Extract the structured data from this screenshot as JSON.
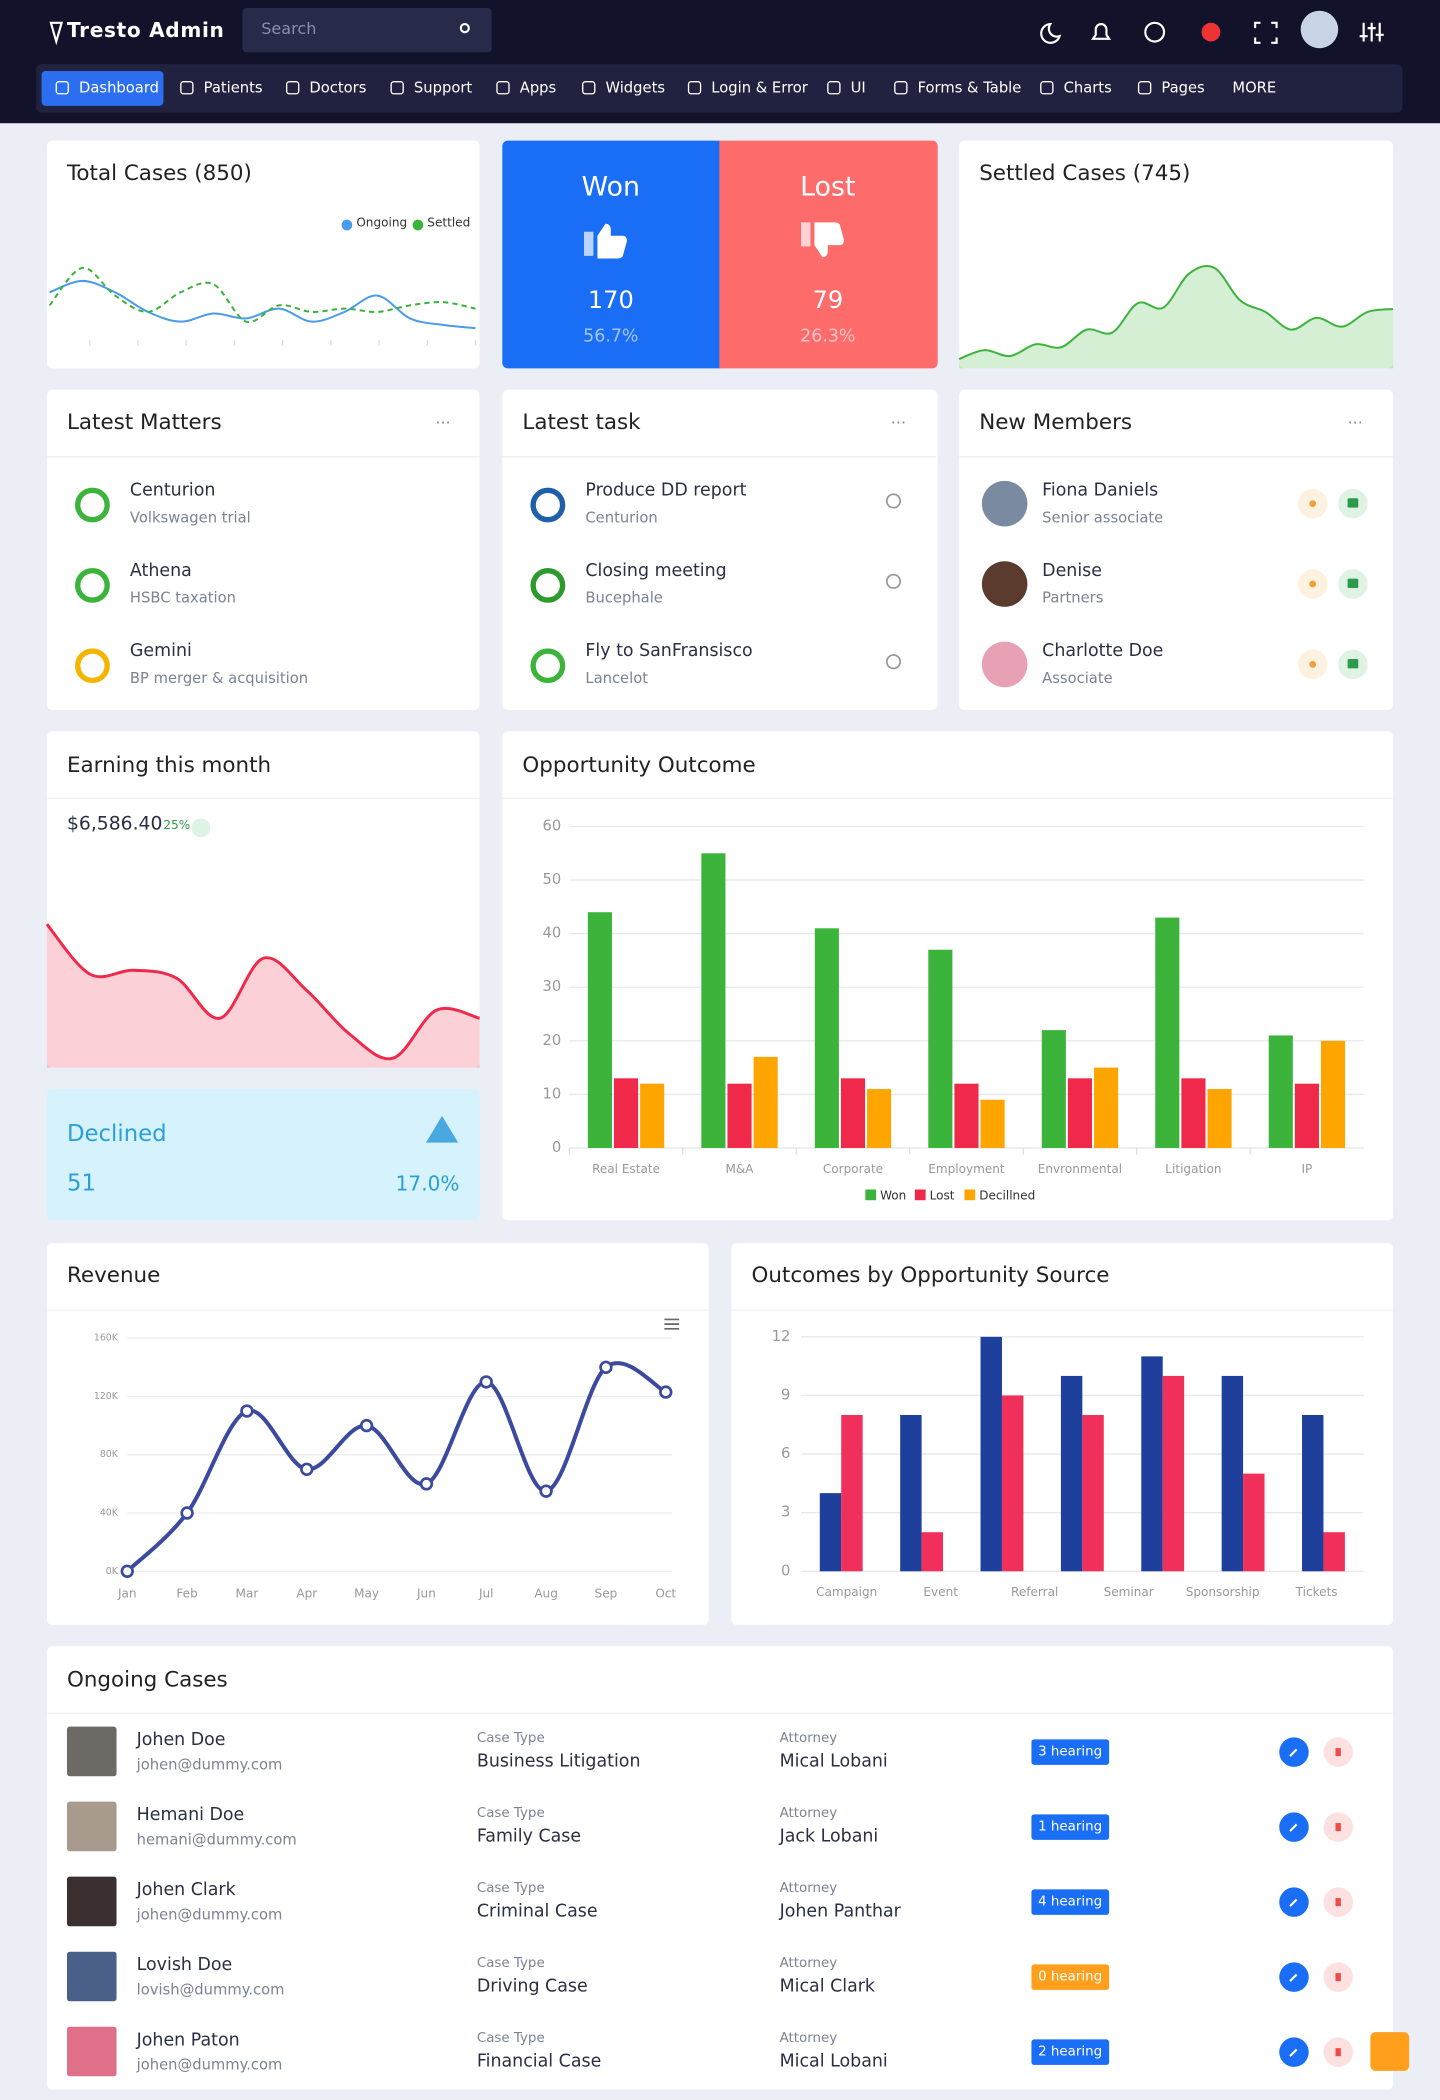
{
  "header": {
    "brand": "Tresto Admin",
    "search_placeholder": "Search"
  },
  "nav": [
    "Dashboard",
    "Patients",
    "Doctors",
    "Support",
    "Apps",
    "Widgets",
    "Login & Error",
    "UI",
    "Forms & Table",
    "Charts",
    "Pages",
    "MORE"
  ],
  "total_cases": {
    "type": "line",
    "title": "Total Cases (850)",
    "series": [
      {
        "name": "Ongoing",
        "color": "#4a9bea",
        "values": [
          30,
          37,
          30,
          18,
          12,
          17,
          14,
          20,
          12,
          18,
          28,
          14,
          10,
          8
        ]
      },
      {
        "name": "Settled",
        "color": "#3cb43c",
        "dashed": true,
        "values": [
          22,
          45,
          28,
          18,
          30,
          35,
          12,
          22,
          18,
          20,
          18,
          22,
          24,
          20
        ]
      }
    ]
  },
  "won_lost": {
    "won": {
      "label": "Won",
      "count": 170,
      "percent": "56.7%"
    },
    "lost": {
      "label": "Lost",
      "count": 79,
      "percent": "26.3%"
    }
  },
  "settled_cases": {
    "type": "area",
    "title": "Settled Cases (745)",
    "color": "#3cb43c",
    "values": [
      10,
      16,
      12,
      20,
      18,
      30,
      28,
      48,
      45,
      68,
      72,
      50,
      42,
      30,
      38,
      32,
      42,
      44
    ]
  },
  "latest_matters": {
    "title": "Latest Matters",
    "items": [
      {
        "name": "Centurion",
        "detail": "Volkswagen trial"
      },
      {
        "name": "Athena",
        "detail": "HSBC taxation"
      },
      {
        "name": "Gemini",
        "detail": "BP merger & acquisition"
      }
    ]
  },
  "latest_task": {
    "title": "Latest task",
    "items": [
      {
        "name": "Produce DD report",
        "detail": "Centurion"
      },
      {
        "name": "Closing meeting",
        "detail": "Bucephale"
      },
      {
        "name": "Fly to SanFransisco",
        "detail": "Lancelot"
      }
    ]
  },
  "new_members": {
    "title": "New Members",
    "items": [
      {
        "name": "Fiona Daniels",
        "detail": "Senior associate"
      },
      {
        "name": "Denise",
        "detail": "Partners"
      },
      {
        "name": "Charlotte Doe",
        "detail": "Associate"
      }
    ]
  },
  "earning": {
    "type": "area",
    "title": "Earning this month",
    "amount": "$6,586.40",
    "change": "25%",
    "color": "#f0284a",
    "values": [
      95,
      70,
      72,
      68,
      48,
      78,
      62,
      40,
      28,
      52,
      48
    ]
  },
  "declined": {
    "label": "Declined",
    "count": 51,
    "percent": "17.0%"
  },
  "opportunity_outcome": {
    "type": "bar",
    "title": "Opportunity Outcome",
    "categories": [
      "Real Estate",
      "M&A",
      "Corporate",
      "Employment",
      "Envronmental",
      "Litigation",
      "IP"
    ],
    "series": [
      {
        "name": "Won",
        "color": "#3cb43c",
        "values": [
          44,
          55,
          41,
          37,
          22,
          43,
          21
        ]
      },
      {
        "name": "Lost",
        "color": "#f0284a",
        "values": [
          13,
          12,
          13,
          12,
          13,
          13,
          12
        ]
      },
      {
        "name": "Decillned",
        "color": "#ffa500",
        "values": [
          12,
          17,
          11,
          9,
          15,
          11,
          20
        ]
      }
    ],
    "ylim": [
      0,
      60
    ],
    "yticks": [
      0,
      10,
      20,
      30,
      40,
      50,
      60
    ],
    "grid": true,
    "legend": "bottom"
  },
  "revenue": {
    "type": "line",
    "title": "Revenue",
    "categories": [
      "Jan",
      "Feb",
      "Mar",
      "Apr",
      "May",
      "Jun",
      "Jul",
      "Aug",
      "Sep",
      "Oct"
    ],
    "series": [
      {
        "color": "#3b4a9e",
        "values": [
          0,
          40000,
          110000,
          70000,
          100000,
          60000,
          130000,
          55000,
          140000,
          123000
        ]
      }
    ],
    "ylim": [
      0,
      160000
    ],
    "yticks": [
      {
        "value": 0,
        "label": "0K"
      },
      {
        "value": 40000,
        "label": "40K"
      },
      {
        "value": 80000,
        "label": "80K"
      },
      {
        "value": 120000,
        "label": "120K"
      },
      {
        "value": 160000,
        "label": "160K"
      }
    ],
    "grid": true
  },
  "outcomes_by_source": {
    "type": "bar",
    "title": "Outcomes by Opportunity Source",
    "categories": [
      "Campaign",
      "Event",
      "Referral",
      "Seminar",
      "Sponsorship",
      "Tickets",
      null
    ],
    "series": [
      {
        "color": "#1e3f9c",
        "values": [
          4,
          8,
          12,
          10,
          11,
          10,
          8
        ]
      },
      {
        "color": "#f0305a",
        "values": [
          8,
          2,
          9,
          8,
          10,
          5,
          2
        ]
      }
    ],
    "ylim": [
      0,
      12
    ],
    "yticks": [
      0,
      3,
      6,
      9,
      12
    ],
    "grid": true
  },
  "ongoing_cases": {
    "title": "Ongoing Cases",
    "case_type_label": "Case Type",
    "attorney_label": "Attorney",
    "rows": [
      {
        "name": "Johen Doe",
        "email": "johen@dummy.com",
        "case_type": "Business Litigation",
        "attorney": "Mical Lobani",
        "hearing": "3 hearing",
        "hearing_color": "#1a6ef5"
      },
      {
        "name": "Hemani Doe",
        "email": "hemani@dummy.com",
        "case_type": "Family Case",
        "attorney": "Jack Lobani",
        "hearing": "1 hearing",
        "hearing_color": "#1a6ef5"
      },
      {
        "name": "Johen Clark",
        "email": "johen@dummy.com",
        "case_type": "Criminal Case",
        "attorney": "Johen Panthar",
        "hearing": "4 hearing",
        "hearing_color": "#1a6ef5"
      },
      {
        "name": "Lovish Doe",
        "email": "lovish@dummy.com",
        "case_type": "Driving Case",
        "attorney": "Mical Clark",
        "hearing": "0 hearing",
        "hearing_color": "#ff9f1c"
      },
      {
        "name": "Johen Paton",
        "email": "johen@dummy.com",
        "case_type": "Financial Case",
        "attorney": "Mical Lobani",
        "hearing": "2 hearing",
        "hearing_color": "#1a6ef5"
      }
    ]
  }
}
